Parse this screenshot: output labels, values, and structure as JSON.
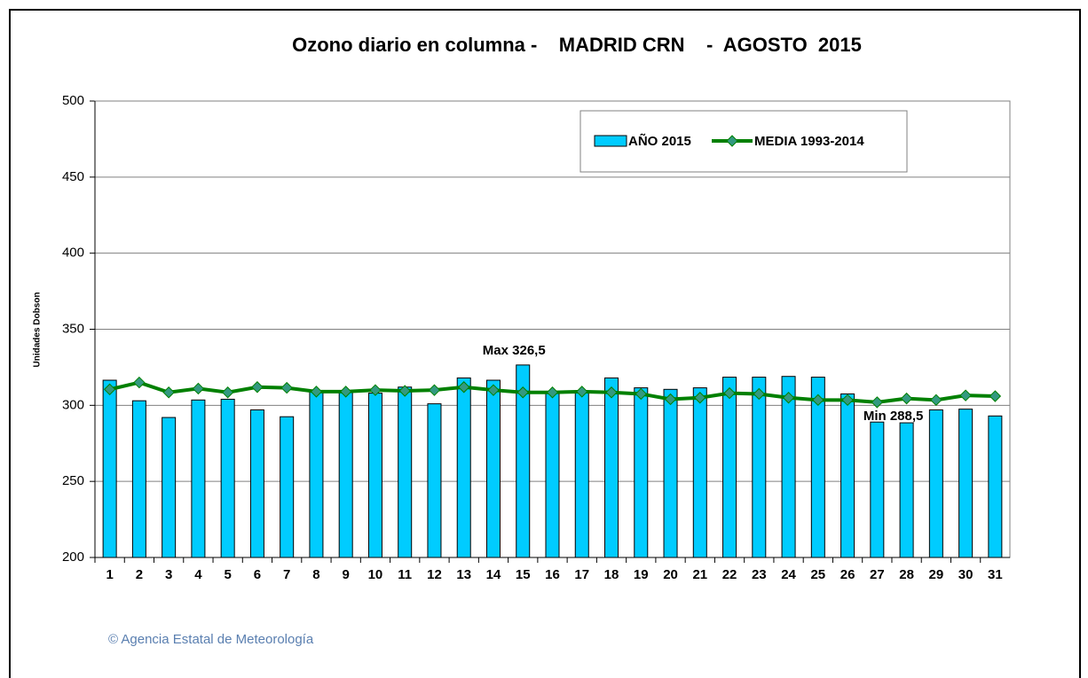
{
  "chart_data": {
    "type": "bar_line",
    "title": "Ozono diario en columna -    MADRID CRN    -  AGOSTO  2015",
    "y_label": "Unidades Dobson",
    "categories": [
      "1",
      "2",
      "3",
      "4",
      "5",
      "6",
      "7",
      "8",
      "9",
      "10",
      "11",
      "12",
      "13",
      "14",
      "15",
      "16",
      "17",
      "18",
      "19",
      "20",
      "21",
      "22",
      "23",
      "24",
      "25",
      "26",
      "27",
      "28",
      "29",
      "30",
      "31"
    ],
    "series": [
      {
        "name": "AÑO 2015",
        "type": "bar",
        "color": "#00ccff",
        "values": [
          316.5,
          303,
          292,
          303.5,
          304,
          297,
          292.5,
          309,
          309.5,
          308,
          312,
          301,
          318,
          316.5,
          326.5,
          309,
          309,
          318,
          311.5,
          310.5,
          311.5,
          318.5,
          318.5,
          319,
          318.5,
          307.5,
          289,
          288.5,
          297,
          297.5,
          293
        ]
      },
      {
        "name": "MEDIA 1993-2014",
        "type": "line",
        "color": "#008000",
        "marker_color": "#339980",
        "values": [
          310.5,
          315,
          308.5,
          311,
          308.5,
          312,
          311.5,
          309,
          309,
          310,
          309.5,
          310,
          312,
          310,
          308.5,
          308.5,
          309,
          308.5,
          307.5,
          304,
          305,
          308,
          307.5,
          305,
          303.5,
          303.5,
          302,
          304.5,
          303.5,
          306.5,
          306
        ]
      }
    ],
    "annotations": [
      "Max 326,5",
      "Min 288,5"
    ],
    "ylim": [
      200,
      500
    ],
    "yticks": [
      200,
      250,
      300,
      350,
      400,
      450,
      500
    ],
    "grid": true,
    "legend": "top-right",
    "footer": "© Agencia Estatal de Meteorología"
  }
}
